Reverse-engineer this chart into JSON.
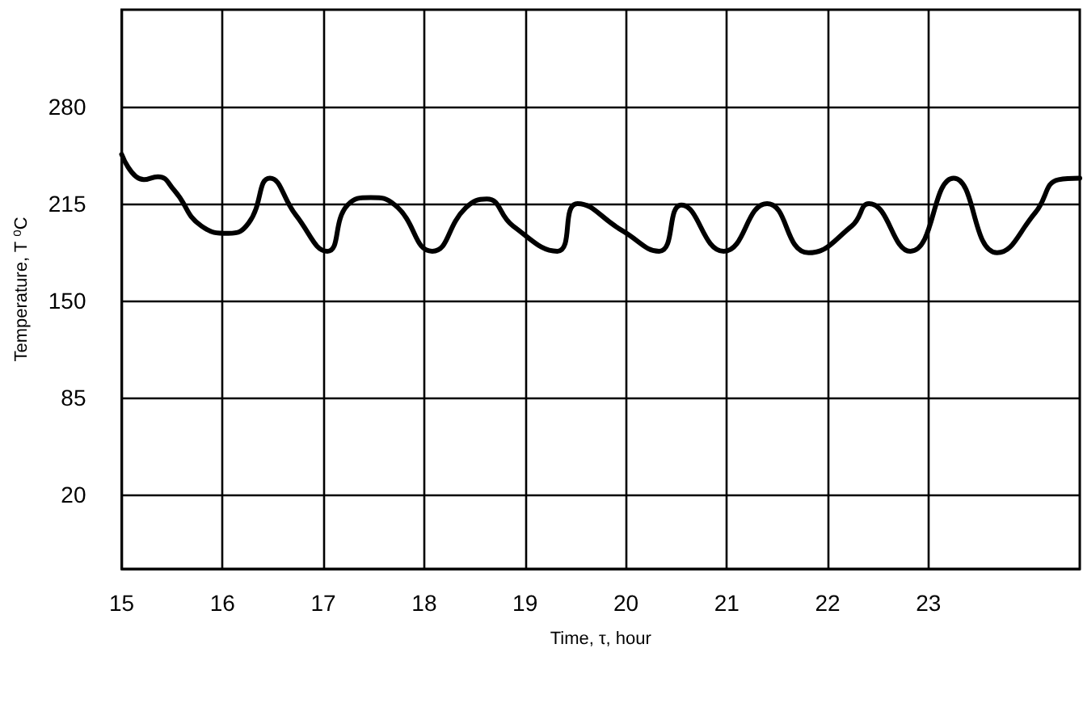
{
  "chart_data": {
    "type": "line",
    "xlabel": "Time, τ, hour",
    "ylabel": "Temperature, T ⁰C",
    "x": [
      15,
      15.22,
      15.36,
      15.52,
      15.79,
      16.06,
      16.26,
      16.47,
      16.73,
      17.04,
      17.24,
      17.47,
      17.71,
      18.08,
      18.41,
      18.62,
      18.88,
      19.32,
      19.52,
      19.96,
      20.33,
      20.55,
      20.97,
      21.4,
      21.81,
      22.24,
      22.41,
      22.82,
      23.25,
      23.68,
      24.06,
      24.29,
      24.5
    ],
    "series": [
      {
        "color": "#000000",
        "values": [
          248,
          231,
          233,
          224,
          200,
          195,
          202,
          232,
          207,
          183,
          214,
          219,
          214,
          183,
          212,
          218,
          200,
          183,
          215,
          197,
          183,
          214,
          183,
          215,
          182,
          200,
          215,
          183,
          232,
          182,
          209,
          231,
          232
        ]
      }
    ],
    "xlim": [
      15,
      24.5
    ],
    "xticks": [
      15,
      16,
      17,
      18,
      19,
      20,
      21,
      22,
      23
    ],
    "ylim": [
      -30,
      345
    ],
    "yticks": [
      20,
      85,
      150,
      215,
      280
    ],
    "grid": true,
    "marker": "none",
    "line_style": "solid"
  }
}
